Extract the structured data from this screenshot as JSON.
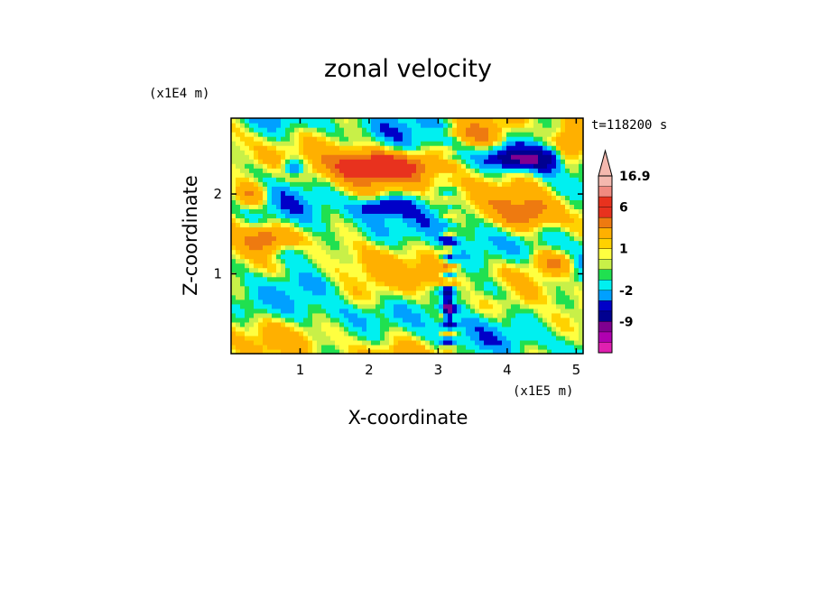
{
  "chart_data": {
    "type": "heatmap",
    "title": "zonal velocity",
    "xlabel": "X-coordinate",
    "ylabel": "Z-coordinate",
    "x_unit": "(x1E5 m)",
    "y_unit": "(x1E4 m)",
    "time_label": "t=118200 s",
    "xlim": [
      0,
      5.1
    ],
    "ylim": [
      0,
      2.95
    ],
    "x_ticks": [
      "1",
      "2",
      "3",
      "4",
      "5"
    ],
    "x_tick_values": [
      1,
      2,
      3,
      4,
      5
    ],
    "y_ticks": [
      "1",
      "2"
    ],
    "y_tick_values": [
      1,
      2
    ],
    "colorbar": {
      "labels": [
        "16.9",
        "6",
        "1",
        "-2",
        "-9"
      ],
      "label_levels": [
        16.9,
        6,
        1,
        -2,
        -9
      ],
      "bins": [
        {
          "level": 16.9,
          "color": "#f4b8ae"
        },
        {
          "level": 14,
          "color": "#f4b8ae"
        },
        {
          "level": 11,
          "color": "#f08a80"
        },
        {
          "level": 9,
          "color": "#e8321e"
        },
        {
          "level": 6,
          "color": "#e8321e"
        },
        {
          "level": 4,
          "color": "#ee7a10"
        },
        {
          "level": 2,
          "color": "#ffb000"
        },
        {
          "level": 1.5,
          "color": "#ffd200"
        },
        {
          "level": 1,
          "color": "#ffff40"
        },
        {
          "level": 0.5,
          "color": "#c8f048"
        },
        {
          "level": 0,
          "color": "#20e050"
        },
        {
          "level": -1,
          "color": "#00f0f0"
        },
        {
          "level": -2,
          "color": "#00a0ff"
        },
        {
          "level": -4,
          "color": "#0000c8"
        },
        {
          "level": -6,
          "color": "#000090"
        },
        {
          "level": -9,
          "color": "#800090"
        },
        {
          "level": -12,
          "color": "#b000b0"
        },
        {
          "level": -15,
          "color": "#e020b0"
        }
      ]
    },
    "features": [
      {
        "x": 2.4,
        "z": 2.35,
        "value": 6,
        "sx": 0.55,
        "sz": 0.18
      },
      {
        "x": 1.8,
        "z": 2.35,
        "value": 4,
        "sx": 0.5,
        "sz": 0.2
      },
      {
        "x": 3.6,
        "z": 2.75,
        "value": 4,
        "sx": 0.4,
        "sz": 0.15
      },
      {
        "x": 4.9,
        "z": 2.6,
        "value": 4,
        "sx": 0.3,
        "sz": 0.25
      },
      {
        "x": 4.3,
        "z": 1.75,
        "value": 4,
        "sx": 0.4,
        "sz": 0.2
      },
      {
        "x": 0.5,
        "z": 1.45,
        "value": 4,
        "sx": 0.3,
        "sz": 0.15
      },
      {
        "x": 4.7,
        "z": 1.15,
        "value": 4,
        "sx": 0.3,
        "sz": 0.15
      },
      {
        "x": 0.3,
        "z": 2.0,
        "value": 4,
        "sx": 0.25,
        "sz": 0.15
      },
      {
        "x": 4.1,
        "z": 2.45,
        "value": -6,
        "sx": 0.35,
        "sz": 0.12
      },
      {
        "x": 4.6,
        "z": 2.45,
        "value": -4,
        "sx": 0.25,
        "sz": 0.15
      },
      {
        "x": 2.2,
        "z": 1.85,
        "value": -4,
        "sx": 0.4,
        "sz": 0.12
      },
      {
        "x": 0.9,
        "z": 2.35,
        "value": -4,
        "sx": 0.15,
        "sz": 0.1
      },
      {
        "x": 3.15,
        "z": 0.6,
        "value": -6,
        "sx": 0.07,
        "sz": 0.25
      },
      {
        "x": 0.9,
        "z": 1.25,
        "value": -2,
        "sx": 0.4,
        "sz": 0.15
      },
      {
        "x": 3.8,
        "z": 0.8,
        "value": -2,
        "sx": 0.5,
        "sz": 0.15
      },
      {
        "x": 4.5,
        "z": 0.6,
        "value": -1,
        "sx": 0.4,
        "sz": 0.15
      },
      {
        "x": 0.3,
        "z": 0.55,
        "value": -1,
        "sx": 0.35,
        "sz": 0.2
      },
      {
        "x": 1.6,
        "z": 0.7,
        "value": 1,
        "sx": 0.6,
        "sz": 0.15
      },
      {
        "x": 2.9,
        "z": 1.0,
        "value": 2,
        "sx": 0.2,
        "sz": 0.2
      }
    ]
  }
}
